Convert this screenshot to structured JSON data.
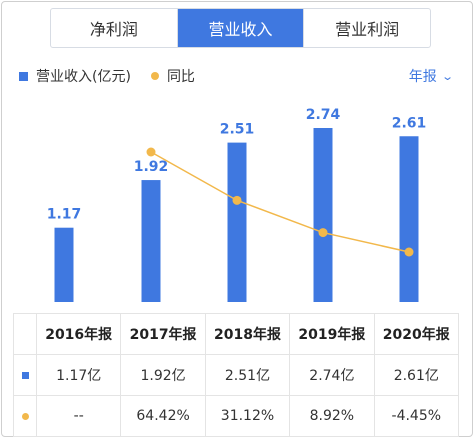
{
  "tabs": [
    {
      "label": "净利润",
      "active": false
    },
    {
      "label": "营业收入",
      "active": true
    },
    {
      "label": "营业利润",
      "active": false
    }
  ],
  "legend": {
    "bar_label": "营业收入(亿元)",
    "line_label": "同比"
  },
  "period": {
    "label": "年报",
    "icon": "chevron-down-icon"
  },
  "colors": {
    "bar": "#3f78e0",
    "line": "#f2b84b",
    "positive": "#e2484a",
    "negative": "#2fa84f"
  },
  "chart_data": {
    "type": "bar",
    "categories": [
      "2016年报",
      "2017年报",
      "2018年报",
      "2019年报",
      "2020年报"
    ],
    "series": [
      {
        "name": "营业收入(亿元)",
        "type": "bar",
        "values": [
          1.17,
          1.92,
          2.51,
          2.74,
          2.61
        ],
        "labels": [
          "1.17",
          "1.92",
          "2.51",
          "2.74",
          "2.61"
        ]
      },
      {
        "name": "同比",
        "type": "line",
        "values": [
          null,
          64.42,
          31.12,
          8.92,
          -4.45
        ]
      }
    ],
    "grid": false
  },
  "table": {
    "headers": [
      "",
      "2016年报",
      "2017年报",
      "2018年报",
      "2019年报",
      "2020年报"
    ],
    "revenue_row": [
      "1.17亿",
      "1.92亿",
      "2.51亿",
      "2.74亿",
      "2.61亿"
    ],
    "yoy_row": [
      "--",
      "64.42%",
      "31.12%",
      "8.92%",
      "-4.45%"
    ]
  }
}
